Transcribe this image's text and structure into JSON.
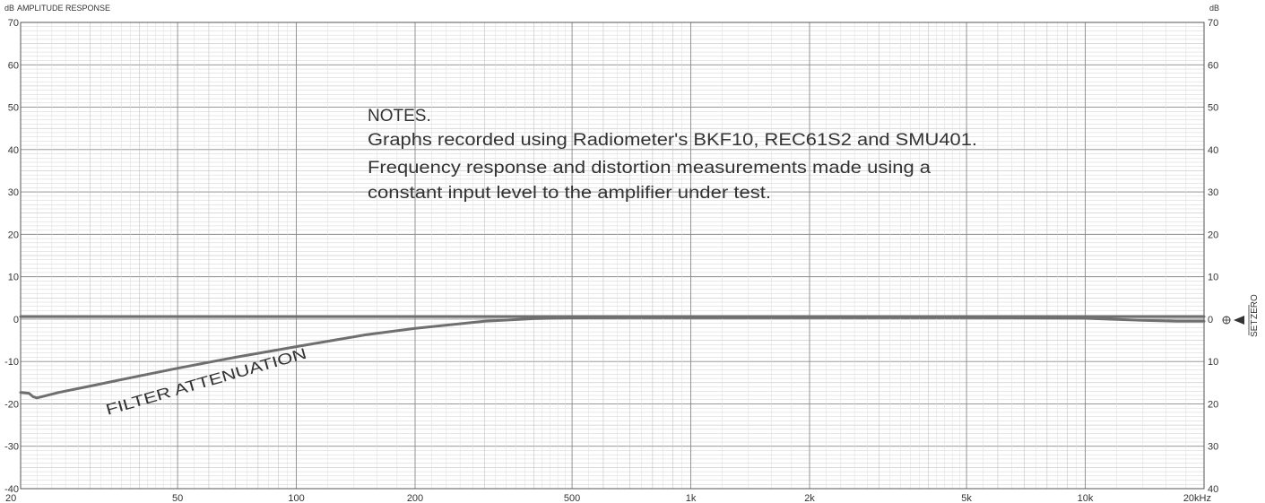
{
  "chart_data": {
    "type": "line",
    "title": "AMPLITUDE RESPONSE",
    "ylabel_left": "dB",
    "ylabel_right": "dB",
    "x_scale": "log",
    "xlim": [
      20,
      20000
    ],
    "ylim": [
      -40,
      70
    ],
    "grid": true,
    "x_ticks": [
      {
        "value": 20,
        "label": "20"
      },
      {
        "value": 50,
        "label": "50"
      },
      {
        "value": 100,
        "label": "100"
      },
      {
        "value": 200,
        "label": "200"
      },
      {
        "value": 500,
        "label": "500"
      },
      {
        "value": 1000,
        "label": "1k"
      },
      {
        "value": 2000,
        "label": "2k"
      },
      {
        "value": 5000,
        "label": "5k"
      },
      {
        "value": 10000,
        "label": "10k"
      },
      {
        "value": 20000,
        "label": "20kHz"
      }
    ],
    "y_ticks_left": [
      {
        "value": 70,
        "label": "70"
      },
      {
        "value": 60,
        "label": "60"
      },
      {
        "value": 50,
        "label": "50"
      },
      {
        "value": 40,
        "label": "40"
      },
      {
        "value": 30,
        "label": "30"
      },
      {
        "value": 20,
        "label": "20"
      },
      {
        "value": 10,
        "label": "10"
      },
      {
        "value": 0,
        "label": "0"
      },
      {
        "value": -10,
        "label": "-10"
      },
      {
        "value": -20,
        "label": "-20"
      },
      {
        "value": -30,
        "label": "-30"
      },
      {
        "value": -40,
        "label": "-40"
      }
    ],
    "y_ticks_right": [
      {
        "value": 70,
        "label": "70"
      },
      {
        "value": 60,
        "label": "60"
      },
      {
        "value": 50,
        "label": "50"
      },
      {
        "value": 40,
        "label": "40"
      },
      {
        "value": 30,
        "label": "30"
      },
      {
        "value": 20,
        "label": "20"
      },
      {
        "value": 10,
        "label": "10"
      },
      {
        "value": 0,
        "label": "0"
      },
      {
        "value": -10,
        "label": "10"
      },
      {
        "value": -20,
        "label": "20"
      },
      {
        "value": -30,
        "label": "30"
      },
      {
        "value": -40,
        "label": "40"
      }
    ],
    "series": [
      {
        "color": "#6f6f6f",
        "x": [
          20,
          21,
          22,
          25,
          30,
          40,
          50,
          60,
          80,
          100,
          150,
          200,
          300,
          400,
          500,
          1000,
          2000,
          5000,
          10000,
          15000,
          20000
        ],
        "y": [
          0.6,
          0.6,
          0.6,
          0.6,
          0.6,
          0.6,
          0.6,
          0.6,
          0.6,
          0.6,
          0.6,
          0.6,
          0.6,
          0.6,
          0.6,
          0.6,
          0.6,
          0.6,
          0.6,
          0.6,
          0.6
        ]
      },
      {
        "color": "#6f6f6f",
        "x": [
          20,
          21,
          21.5,
          22,
          25,
          30,
          40,
          50,
          70,
          100,
          150,
          200,
          300,
          400,
          500,
          700,
          1000,
          2000,
          5000,
          10000,
          14000,
          17000,
          20000
        ],
        "y": [
          -17.3,
          -17.5,
          -18.3,
          -18.6,
          -17.3,
          -15.8,
          -13.4,
          -11.6,
          -9.0,
          -6.5,
          -3.7,
          -2.2,
          -0.5,
          0.1,
          0.3,
          0.4,
          0.4,
          0.4,
          0.4,
          0.2,
          -0.3,
          -0.5,
          -0.5
        ]
      }
    ],
    "annotations": {
      "notes_heading": "NOTES.",
      "notes_line1": "Graphs recorded using Radiometer's BKF10, REC61S2 and SMU401.",
      "notes_line2": "Frequency response and distortion measurements made using a",
      "notes_line3": "constant input level to the amplifier under test.",
      "curve_label": "FILTER ATTENUATION",
      "side_label_set": "SET",
      "side_label_zero": "ZERO"
    }
  }
}
